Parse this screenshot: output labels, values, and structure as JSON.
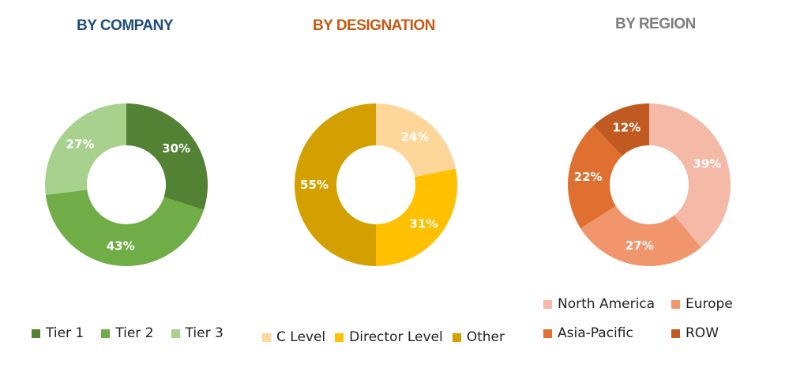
{
  "chart_data": [
    {
      "type": "pie",
      "title": "BY COMPANY",
      "title_color": "#1f4e79",
      "categories": [
        "Tier 1",
        "Tier 2",
        "Tier 3"
      ],
      "values": [
        30,
        43,
        27
      ],
      "value_labels": [
        "30%",
        "43%",
        "27%"
      ],
      "colors": [
        "#548235",
        "#70ad47",
        "#a9d18e"
      ],
      "legend": "bottom"
    },
    {
      "type": "pie",
      "title": "BY DESIGNATION",
      "title_color": "#c55a11",
      "categories": [
        "C Level",
        "Director Level",
        "Other"
      ],
      "values": [
        24,
        31,
        55
      ],
      "value_labels": [
        "24%",
        "31%",
        "55%"
      ],
      "colors": [
        "#ffd699",
        "#ffc000",
        "#d4a000"
      ],
      "legend": "bottom"
    },
    {
      "type": "pie",
      "title": "BY REGION",
      "title_color": "#7f7f7f",
      "categories": [
        "North America",
        "Europe",
        "Asia-Pacific",
        "ROW"
      ],
      "values": [
        39,
        27,
        22,
        12
      ],
      "value_labels": [
        "39%",
        "27%",
        "22%",
        "12%"
      ],
      "colors": [
        "#f4b9a7",
        "#f0956c",
        "#e07030",
        "#c05a20"
      ],
      "legend": "bottom"
    }
  ]
}
